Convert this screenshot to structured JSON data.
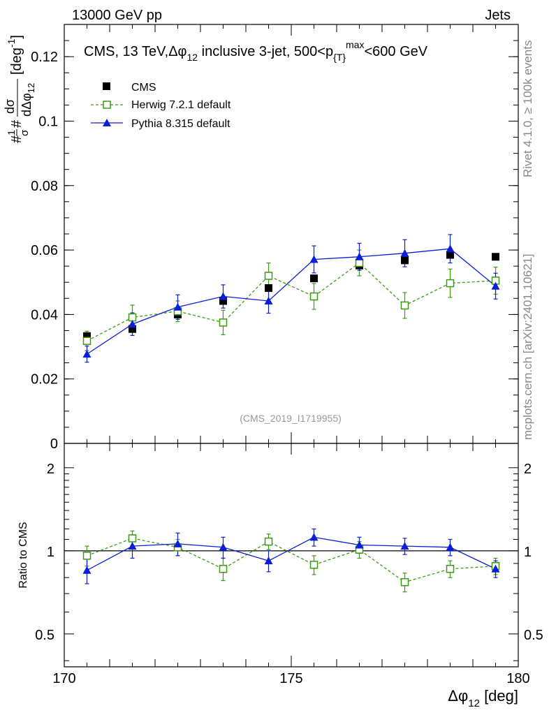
{
  "header": {
    "left": "13000 GeV pp",
    "right": "Jets"
  },
  "side_labels": {
    "rivet": "Rivet 4.1.0, ≥ 100k events",
    "mcplots": "mcplots.cern.ch [arXiv:2401.10621]"
  },
  "watermark": "(CMS_2019_I1719955)",
  "colors": {
    "cms": "#000000",
    "herwig": "#3a9a12",
    "pythia": "#0a1ed8",
    "side": "#888888"
  },
  "chart_data": [
    {
      "type": "scatter",
      "panel": "main",
      "title": {
        "main": "CMS, 13 TeV,",
        "var": "Δφ",
        "var_sub": "12",
        "rest": " inclusive 3-jet, 500<p",
        "sub": "{T}",
        "sup": "max",
        "tail": "<600 GeV"
      },
      "ylabel": "#1/σ # dσ/dΔφ12 [deg-1]",
      "ylabel_parts": {
        "num": "dσ",
        "den": "dΔφ",
        "den_sub": "12",
        "unit": "[deg",
        "unit_sup": "-1",
        "unit_close": "]"
      },
      "xlim": [
        170,
        180
      ],
      "ylim": [
        0,
        0.13
      ],
      "yticks": [
        0,
        0.02,
        0.04,
        0.06,
        0.08,
        0.1,
        0.12
      ],
      "ytick_labels": [
        "0",
        "0.02",
        "0.04",
        "0.06",
        "0.08",
        "0.1",
        "0.12"
      ],
      "x": [
        170.5,
        171.5,
        172.5,
        173.5,
        174.5,
        175.5,
        176.5,
        177.5,
        178.5,
        179.5
      ],
      "series": [
        {
          "name": "CMS",
          "style": "markers",
          "values": [
            0.0333,
            0.0355,
            0.04,
            0.0442,
            0.0482,
            0.0512,
            0.0552,
            0.0568,
            0.0585,
            0.0579
          ]
        },
        {
          "name": "Herwig 7.2.1 default",
          "style": "dashed-open-square",
          "values": [
            0.0318,
            0.0391,
            0.041,
            0.0375,
            0.052,
            0.0456,
            0.056,
            0.0428,
            0.0497,
            0.0505
          ],
          "errors": [
            0.003,
            0.0038,
            0.0032,
            0.0038,
            0.004,
            0.004,
            0.004,
            0.004,
            0.0044,
            0.0042
          ]
        },
        {
          "name": "Pythia 8.315 default",
          "style": "solid-triangle",
          "values": [
            0.0277,
            0.037,
            0.0423,
            0.0456,
            0.0442,
            0.0571,
            0.0579,
            0.059,
            0.0604,
            0.0488
          ],
          "errors": [
            0.0025,
            0.0035,
            0.0038,
            0.0036,
            0.0038,
            0.0042,
            0.0042,
            0.0042,
            0.0044,
            0.004
          ]
        }
      ]
    },
    {
      "type": "scatter",
      "panel": "ratio",
      "ylabel": "Ratio to CMS",
      "xlabel": {
        "var": "Δφ",
        "sub": "12",
        "unit": " [deg]"
      },
      "xlim": [
        170,
        180
      ],
      "ylim": [
        0.38,
        2.45
      ],
      "yscale": "log",
      "xticks": [
        170,
        175,
        180
      ],
      "xtick_labels": [
        "170",
        "175",
        "180"
      ],
      "yticks": [
        0.5,
        1,
        2
      ],
      "ytick_labels": [
        "0.5",
        "1",
        "2"
      ],
      "x": [
        170.5,
        171.5,
        172.5,
        173.5,
        174.5,
        175.5,
        176.5,
        177.5,
        178.5,
        179.5
      ],
      "series": [
        {
          "name": "Herwig 7.2.1 default",
          "values": [
            0.96,
            1.11,
            1.03,
            0.86,
            1.08,
            0.89,
            1.01,
            0.77,
            0.86,
            0.88
          ],
          "errors": [
            0.08,
            0.07,
            0.07,
            0.08,
            0.07,
            0.07,
            0.07,
            0.06,
            0.06,
            0.06
          ]
        },
        {
          "name": "Pythia 8.315 default",
          "values": [
            0.85,
            1.04,
            1.06,
            1.03,
            0.92,
            1.12,
            1.05,
            1.04,
            1.03,
            0.86
          ],
          "errors": [
            0.09,
            0.1,
            0.1,
            0.09,
            0.08,
            0.08,
            0.07,
            0.07,
            0.07,
            0.06
          ]
        }
      ]
    }
  ]
}
